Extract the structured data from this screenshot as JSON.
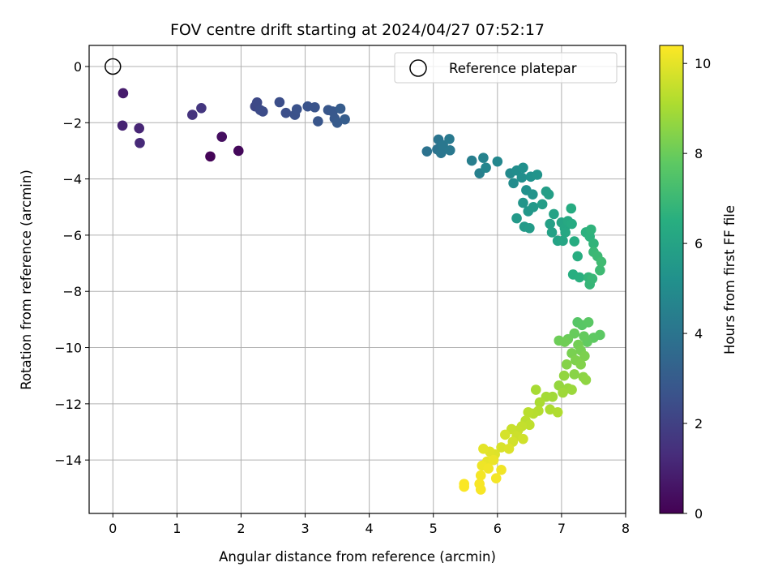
{
  "chart_data": {
    "type": "scatter",
    "title": "FOV centre drift starting at 2024/04/27 07:52:17",
    "xlabel": "Angular distance from reference (arcmin)",
    "ylabel": "Rotation from reference (arcmin)",
    "xlim": [
      -0.37,
      8.0
    ],
    "ylim": [
      -15.9,
      0.75
    ],
    "xticks": [
      0,
      1,
      2,
      3,
      4,
      5,
      6,
      7,
      8
    ],
    "yticks": [
      0,
      -2,
      -4,
      -6,
      -8,
      -10,
      -12,
      -14
    ],
    "grid": true,
    "legend": {
      "placement": "top-right",
      "entries": [
        "Reference platepar"
      ]
    },
    "reference_point": {
      "x": 0.0,
      "y": 0.0,
      "marker": "open-circle"
    },
    "colorbar": {
      "label": "Hours from first FF file",
      "colormap": "viridis",
      "range": [
        0,
        10.4
      ],
      "ticks": [
        0,
        2,
        4,
        6,
        8,
        10
      ]
    },
    "points": [
      {
        "x": 1.52,
        "y": -3.2,
        "c": 0.1
      },
      {
        "x": 1.96,
        "y": -3.0,
        "c": 0.2
      },
      {
        "x": 1.7,
        "y": -2.5,
        "c": 0.4
      },
      {
        "x": 0.16,
        "y": -0.95,
        "c": 0.8
      },
      {
        "x": 0.15,
        "y": -2.1,
        "c": 1.0
      },
      {
        "x": 0.41,
        "y": -2.2,
        "c": 1.1
      },
      {
        "x": 0.42,
        "y": -2.72,
        "c": 1.2
      },
      {
        "x": 1.24,
        "y": -1.72,
        "c": 1.5
      },
      {
        "x": 1.38,
        "y": -1.48,
        "c": 1.6
      },
      {
        "x": 2.22,
        "y": -1.42,
        "c": 2.2
      },
      {
        "x": 2.25,
        "y": -1.28,
        "c": 2.3
      },
      {
        "x": 2.3,
        "y": -1.55,
        "c": 2.35
      },
      {
        "x": 2.34,
        "y": -1.6,
        "c": 2.4
      },
      {
        "x": 2.6,
        "y": -1.27,
        "c": 2.45
      },
      {
        "x": 2.7,
        "y": -1.65,
        "c": 2.5
      },
      {
        "x": 2.84,
        "y": -1.72,
        "c": 2.55
      },
      {
        "x": 2.87,
        "y": -1.52,
        "c": 2.6
      },
      {
        "x": 3.04,
        "y": -1.42,
        "c": 2.65
      },
      {
        "x": 3.15,
        "y": -1.45,
        "c": 2.7
      },
      {
        "x": 3.2,
        "y": -1.95,
        "c": 2.75
      },
      {
        "x": 3.36,
        "y": -1.55,
        "c": 2.8
      },
      {
        "x": 3.43,
        "y": -1.6,
        "c": 2.85
      },
      {
        "x": 3.46,
        "y": -1.85,
        "c": 2.9
      },
      {
        "x": 3.5,
        "y": -2.0,
        "c": 2.95
      },
      {
        "x": 3.55,
        "y": -1.5,
        "c": 3.0
      },
      {
        "x": 3.62,
        "y": -1.88,
        "c": 3.05
      },
      {
        "x": 4.9,
        "y": -3.02,
        "c": 3.9
      },
      {
        "x": 5.06,
        "y": -2.95,
        "c": 3.95
      },
      {
        "x": 5.08,
        "y": -2.6,
        "c": 4.0
      },
      {
        "x": 5.12,
        "y": -3.08,
        "c": 4.05
      },
      {
        "x": 5.15,
        "y": -2.8,
        "c": 4.1
      },
      {
        "x": 5.26,
        "y": -2.98,
        "c": 4.15
      },
      {
        "x": 5.25,
        "y": -2.58,
        "c": 4.2
      },
      {
        "x": 5.6,
        "y": -3.35,
        "c": 4.4
      },
      {
        "x": 5.72,
        "y": -3.8,
        "c": 4.5
      },
      {
        "x": 5.78,
        "y": -3.25,
        "c": 4.6
      },
      {
        "x": 5.82,
        "y": -3.6,
        "c": 4.7
      },
      {
        "x": 6.0,
        "y": -3.38,
        "c": 4.8
      },
      {
        "x": 6.2,
        "y": -3.8,
        "c": 4.9
      },
      {
        "x": 6.25,
        "y": -4.15,
        "c": 5.0
      },
      {
        "x": 6.3,
        "y": -3.7,
        "c": 5.05
      },
      {
        "x": 6.38,
        "y": -3.95,
        "c": 5.1
      },
      {
        "x": 6.4,
        "y": -3.6,
        "c": 5.15
      },
      {
        "x": 6.45,
        "y": -4.4,
        "c": 5.2
      },
      {
        "x": 6.52,
        "y": -3.92,
        "c": 5.25
      },
      {
        "x": 6.55,
        "y": -4.55,
        "c": 5.3
      },
      {
        "x": 6.62,
        "y": -3.85,
        "c": 5.35
      },
      {
        "x": 6.4,
        "y": -4.85,
        "c": 5.4
      },
      {
        "x": 6.48,
        "y": -5.15,
        "c": 5.45
      },
      {
        "x": 6.56,
        "y": -5.0,
        "c": 5.5
      },
      {
        "x": 6.3,
        "y": -5.4,
        "c": 5.55
      },
      {
        "x": 6.42,
        "y": -5.7,
        "c": 5.6
      },
      {
        "x": 6.5,
        "y": -5.75,
        "c": 5.65
      },
      {
        "x": 6.7,
        "y": -4.9,
        "c": 5.7
      },
      {
        "x": 6.76,
        "y": -4.45,
        "c": 5.75
      },
      {
        "x": 6.8,
        "y": -4.55,
        "c": 5.8
      },
      {
        "x": 6.82,
        "y": -5.6,
        "c": 5.85
      },
      {
        "x": 6.85,
        "y": -5.9,
        "c": 5.9
      },
      {
        "x": 6.88,
        "y": -5.25,
        "c": 5.95
      },
      {
        "x": 6.94,
        "y": -6.2,
        "c": 6.0
      },
      {
        "x": 7.0,
        "y": -5.55,
        "c": 6.05
      },
      {
        "x": 7.02,
        "y": -6.2,
        "c": 6.1
      },
      {
        "x": 7.05,
        "y": -5.75,
        "c": 6.15
      },
      {
        "x": 7.06,
        "y": -5.9,
        "c": 6.2
      },
      {
        "x": 7.1,
        "y": -5.5,
        "c": 6.25
      },
      {
        "x": 7.16,
        "y": -5.6,
        "c": 6.3
      },
      {
        "x": 7.15,
        "y": -5.05,
        "c": 6.35
      },
      {
        "x": 7.2,
        "y": -6.22,
        "c": 6.4
      },
      {
        "x": 7.25,
        "y": -6.75,
        "c": 6.45
      },
      {
        "x": 7.18,
        "y": -7.4,
        "c": 6.5
      },
      {
        "x": 7.28,
        "y": -7.5,
        "c": 6.55
      },
      {
        "x": 7.38,
        "y": -5.9,
        "c": 6.6
      },
      {
        "x": 7.44,
        "y": -6.05,
        "c": 6.65
      },
      {
        "x": 7.46,
        "y": -5.8,
        "c": 6.7
      },
      {
        "x": 7.5,
        "y": -6.3,
        "c": 6.75
      },
      {
        "x": 7.42,
        "y": -7.5,
        "c": 6.8
      },
      {
        "x": 7.44,
        "y": -7.75,
        "c": 6.85
      },
      {
        "x": 7.48,
        "y": -7.55,
        "c": 6.9
      },
      {
        "x": 7.5,
        "y": -6.6,
        "c": 6.95
      },
      {
        "x": 7.56,
        "y": -6.75,
        "c": 7.0
      },
      {
        "x": 7.6,
        "y": -7.25,
        "c": 7.05
      },
      {
        "x": 7.62,
        "y": -6.95,
        "c": 7.1
      },
      {
        "x": 7.25,
        "y": -9.1,
        "c": 7.6
      },
      {
        "x": 7.32,
        "y": -9.2,
        "c": 7.65
      },
      {
        "x": 7.42,
        "y": -9.1,
        "c": 7.7
      },
      {
        "x": 7.6,
        "y": -9.55,
        "c": 7.75
      },
      {
        "x": 7.5,
        "y": -9.65,
        "c": 7.8
      },
      {
        "x": 7.4,
        "y": -9.8,
        "c": 7.85
      },
      {
        "x": 7.35,
        "y": -9.6,
        "c": 7.9
      },
      {
        "x": 7.2,
        "y": -9.5,
        "c": 7.95
      },
      {
        "x": 7.1,
        "y": -9.7,
        "c": 8.0
      },
      {
        "x": 6.96,
        "y": -9.75,
        "c": 8.05
      },
      {
        "x": 7.05,
        "y": -9.8,
        "c": 8.1
      },
      {
        "x": 7.26,
        "y": -9.9,
        "c": 8.15
      },
      {
        "x": 7.3,
        "y": -10.1,
        "c": 8.2
      },
      {
        "x": 7.16,
        "y": -10.2,
        "c": 8.25
      },
      {
        "x": 7.36,
        "y": -10.3,
        "c": 8.3
      },
      {
        "x": 7.22,
        "y": -10.45,
        "c": 8.35
      },
      {
        "x": 7.3,
        "y": -10.6,
        "c": 8.4
      },
      {
        "x": 7.08,
        "y": -10.6,
        "c": 8.45
      },
      {
        "x": 7.2,
        "y": -10.95,
        "c": 8.5
      },
      {
        "x": 7.34,
        "y": -11.05,
        "c": 8.55
      },
      {
        "x": 7.38,
        "y": -11.15,
        "c": 8.6
      },
      {
        "x": 7.04,
        "y": -11.0,
        "c": 8.65
      },
      {
        "x": 6.96,
        "y": -11.35,
        "c": 8.7
      },
      {
        "x": 7.1,
        "y": -11.45,
        "c": 8.75
      },
      {
        "x": 7.16,
        "y": -11.5,
        "c": 8.8
      },
      {
        "x": 7.02,
        "y": -11.6,
        "c": 8.85
      },
      {
        "x": 6.86,
        "y": -11.75,
        "c": 8.9
      },
      {
        "x": 6.76,
        "y": -11.75,
        "c": 8.95
      },
      {
        "x": 6.6,
        "y": -11.5,
        "c": 9.0
      },
      {
        "x": 6.66,
        "y": -11.95,
        "c": 9.05
      },
      {
        "x": 6.82,
        "y": -12.2,
        "c": 9.1
      },
      {
        "x": 6.94,
        "y": -12.3,
        "c": 9.15
      },
      {
        "x": 6.64,
        "y": -12.25,
        "c": 9.2
      },
      {
        "x": 6.56,
        "y": -12.35,
        "c": 9.25
      },
      {
        "x": 6.48,
        "y": -12.3,
        "c": 9.3
      },
      {
        "x": 6.44,
        "y": -12.6,
        "c": 9.35
      },
      {
        "x": 6.5,
        "y": -12.75,
        "c": 9.4
      },
      {
        "x": 6.38,
        "y": -12.8,
        "c": 9.45
      },
      {
        "x": 6.32,
        "y": -12.95,
        "c": 9.5
      },
      {
        "x": 6.22,
        "y": -12.9,
        "c": 9.55
      },
      {
        "x": 6.3,
        "y": -13.15,
        "c": 9.6
      },
      {
        "x": 6.4,
        "y": -13.25,
        "c": 9.65
      },
      {
        "x": 6.24,
        "y": -13.35,
        "c": 9.7
      },
      {
        "x": 6.12,
        "y": -13.1,
        "c": 9.75
      },
      {
        "x": 6.06,
        "y": -13.55,
        "c": 9.8
      },
      {
        "x": 6.18,
        "y": -13.6,
        "c": 9.85
      },
      {
        "x": 5.96,
        "y": -13.8,
        "c": 9.9
      },
      {
        "x": 5.88,
        "y": -13.7,
        "c": 9.95
      },
      {
        "x": 5.78,
        "y": -13.6,
        "c": 10.0
      },
      {
        "x": 5.84,
        "y": -14.05,
        "c": 10.05
      },
      {
        "x": 5.94,
        "y": -14.0,
        "c": 10.1
      },
      {
        "x": 5.76,
        "y": -14.2,
        "c": 10.15
      },
      {
        "x": 5.86,
        "y": -14.3,
        "c": 10.2
      },
      {
        "x": 6.06,
        "y": -14.35,
        "c": 10.2
      },
      {
        "x": 5.98,
        "y": -14.65,
        "c": 10.25
      },
      {
        "x": 5.74,
        "y": -14.55,
        "c": 10.25
      },
      {
        "x": 5.72,
        "y": -14.85,
        "c": 10.3
      },
      {
        "x": 5.74,
        "y": -15.05,
        "c": 10.3
      },
      {
        "x": 5.48,
        "y": -14.95,
        "c": 10.35
      },
      {
        "x": 5.48,
        "y": -14.85,
        "c": 10.35
      }
    ]
  }
}
